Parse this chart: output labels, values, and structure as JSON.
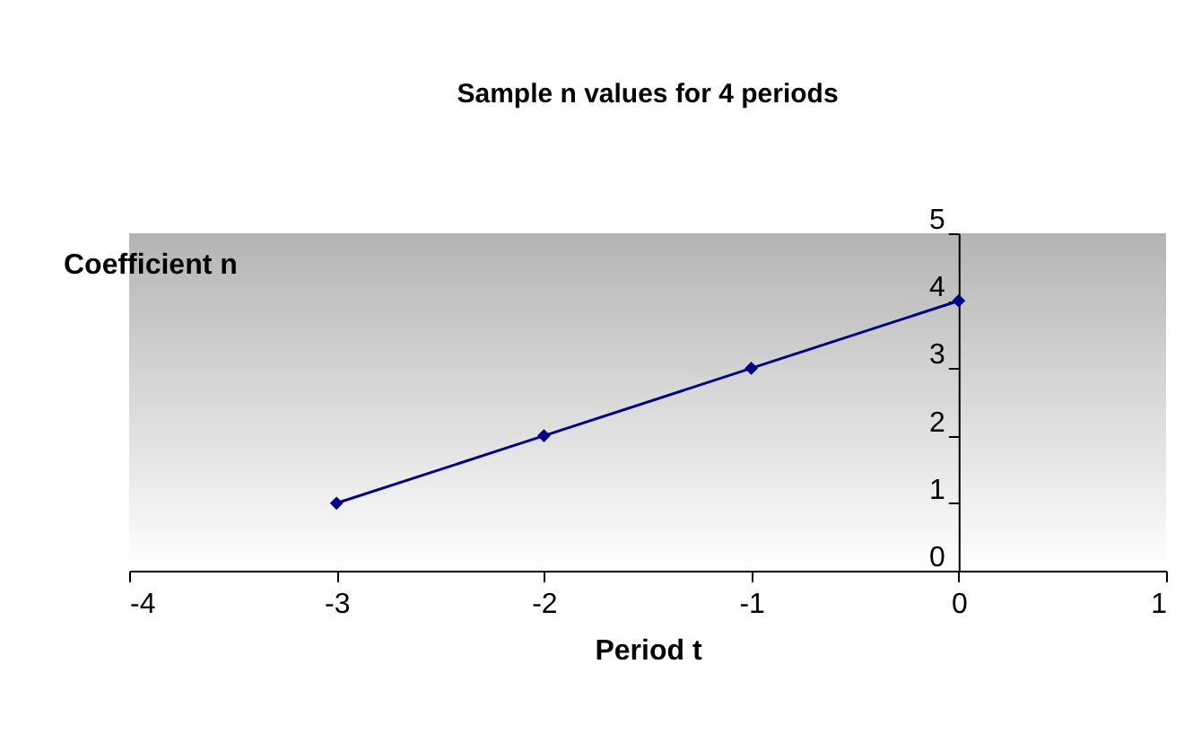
{
  "chart_data": {
    "type": "line",
    "title": "Sample n values for 4 periods",
    "xlabel": "Period t",
    "ylabel": "Coefficient n",
    "x": [
      -3,
      -2,
      -1,
      0
    ],
    "series": [
      {
        "color": "#000080",
        "values": [
          1,
          2,
          3,
          4
        ]
      }
    ],
    "xlim": [
      -4,
      1
    ],
    "xticks": [
      -4,
      -3,
      -2,
      -1,
      0,
      1
    ],
    "ylim": [
      0,
      5
    ],
    "yticks": [
      0,
      1,
      2,
      3,
      4,
      5
    ],
    "grid": false,
    "legend": false,
    "marker": "diamond",
    "line_style": "solid"
  }
}
